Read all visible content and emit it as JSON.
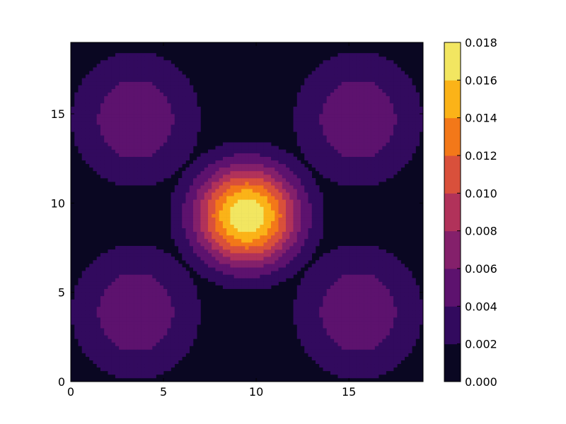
{
  "chart_data": {
    "type": "heatmap",
    "subtype": "filled-contour",
    "title": "",
    "xlabel": "",
    "ylabel": "",
    "xlim": [
      0,
      19
    ],
    "ylim": [
      0,
      19
    ],
    "xticks": [
      0,
      5,
      10,
      15
    ],
    "yticks": [
      0,
      5,
      10,
      15
    ],
    "xtick_labels": [
      "0",
      "5",
      "10",
      "15"
    ],
    "ytick_labels": [
      "0",
      "5",
      "10",
      "15"
    ],
    "grid": false,
    "colorbar": {
      "levels": [
        0.0,
        0.002,
        0.004,
        0.006,
        0.008,
        0.01,
        0.012,
        0.014,
        0.016,
        0.018
      ],
      "tick_labels": [
        "0.000",
        "0.002",
        "0.004",
        "0.006",
        "0.008",
        "0.010",
        "0.012",
        "0.014",
        "0.016",
        "0.018"
      ],
      "colors": [
        "#0a0722",
        "#320a5e",
        "#5d126e",
        "#84206b",
        "#b1325a",
        "#d9503b",
        "#f37819",
        "#fbb318",
        "#f2e661"
      ],
      "placement": "right"
    },
    "background_color": "#0a0722",
    "features": [
      {
        "name": "center-peak",
        "cx": 9.5,
        "cy": 9.3,
        "peak_value": 0.018,
        "outer_radius": 4.0
      },
      {
        "name": "lobe-top-left",
        "cx": 3.5,
        "cy": 14.7,
        "peak_value": 0.006
      },
      {
        "name": "lobe-top-right",
        "cx": 15.5,
        "cy": 14.7,
        "peak_value": 0.006
      },
      {
        "name": "lobe-bottom-left",
        "cx": 3.5,
        "cy": 3.9,
        "peak_value": 0.006
      },
      {
        "name": "lobe-bottom-right",
        "cx": 15.5,
        "cy": 3.9,
        "peak_value": 0.006
      }
    ]
  }
}
